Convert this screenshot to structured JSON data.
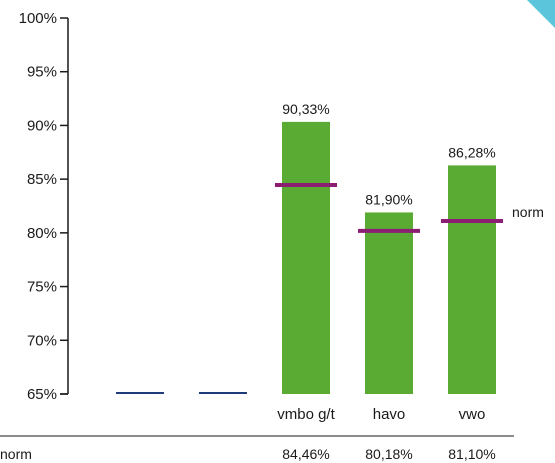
{
  "colors": {
    "bar": "#5aab34",
    "norm_marker": "#8c1e73",
    "empty_marker": "#1f3b7a",
    "axis": "#1a1a1a",
    "corner_tag": "#5bc5dc"
  },
  "chart_data": {
    "type": "bar",
    "categories": [
      "",
      "",
      "vmbo g/t",
      "havo",
      "vwo"
    ],
    "values": [
      null,
      null,
      90.33,
      81.9,
      86.28
    ],
    "value_labels": [
      "",
      "",
      "90,33%",
      "81,90%",
      "86,28%"
    ],
    "norm": [
      null,
      null,
      84.46,
      80.18,
      81.1
    ],
    "norm_labels": [
      "",
      "",
      "84,46%",
      "80,18%",
      "81,10%"
    ],
    "norm_legend": "norm",
    "table_row_label": "norm",
    "ylim": [
      65,
      100
    ],
    "yticks": [
      65,
      70,
      75,
      80,
      85,
      90,
      95,
      100
    ],
    "ytick_labels": [
      "65%",
      "70%",
      "75%",
      "80%",
      "85%",
      "90%",
      "95%",
      "100%"
    ],
    "grid": false,
    "legend_placement": "right"
  }
}
